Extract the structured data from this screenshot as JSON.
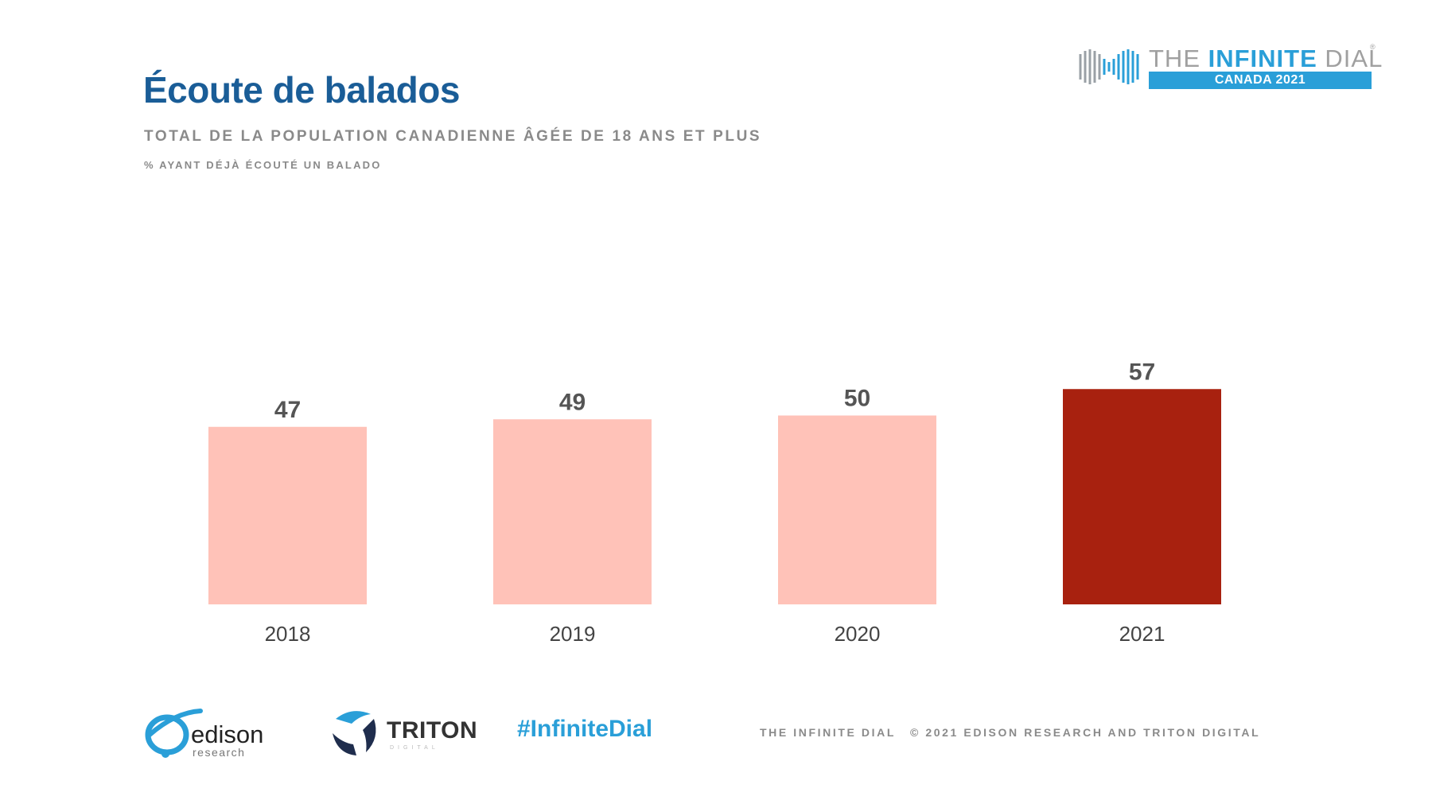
{
  "header": {
    "title": "Écoute de balados",
    "subtitle": "TOTAL DE LA POPULATION CANADIENNE ÂGÉE DE 18 ANS ET PLUS",
    "note": "% AYANT DÉJÀ ÉCOUTÉ UN BALADO"
  },
  "logo_top": {
    "icon": "infinity-icon",
    "name_light": "THE ",
    "name_bold": "INFINITE",
    "name_light_end": " DIAL",
    "reg": "®",
    "band": "CANADA 2021"
  },
  "footer": {
    "edison_word": "edison",
    "edison_sub": "research",
    "triton_word": "TRITON",
    "triton_sub": "DIGITAL",
    "hashtag": "#InfiniteDial",
    "left_text": "THE INFINITE DIAL",
    "copyright": "© 2021 EDISON RESEARCH AND TRITON DIGITAL"
  },
  "colors": {
    "title": "#1a5d97",
    "bar_light": "#ffc2b8",
    "bar_highlight": "#a8210f",
    "accent": "#2a9fd8"
  },
  "chart_data": {
    "type": "bar",
    "categories": [
      "2018",
      "2019",
      "2020",
      "2021"
    ],
    "values": [
      47,
      49,
      50,
      57
    ],
    "highlight": "2021",
    "title": "Écoute de balados",
    "subtitle": "TOTAL DE LA POPULATION CANADIENNE ÂGÉE DE 18 ANS ET PLUS",
    "xlabel": "",
    "ylabel": "% AYANT DÉJÀ ÉCOUTÉ UN BALADO",
    "ylim": [
      0,
      100
    ],
    "grid": false,
    "legend": "none",
    "data_labels": true
  }
}
